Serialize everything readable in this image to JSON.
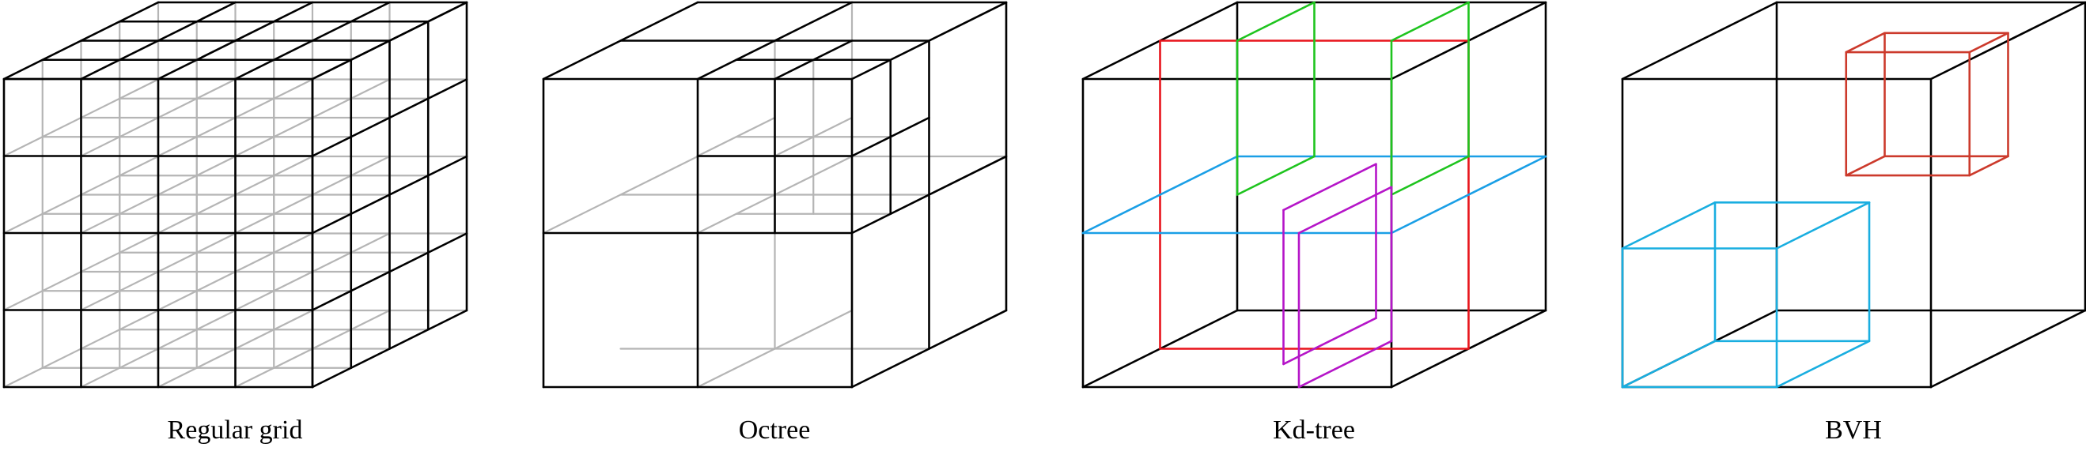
{
  "figure": {
    "panels": [
      {
        "id": "regular-grid",
        "caption": "Regular grid"
      },
      {
        "id": "octree",
        "caption": "Octree"
      },
      {
        "id": "kd-tree",
        "caption": "Kd-tree",
        "colors": {
          "root-split": "#e8141b",
          "left-children": "#1ec41e",
          "right-split": "#b515c8",
          "lower-split": "#1a9fe6"
        }
      },
      {
        "id": "bvh",
        "caption": "BVH",
        "colors": {
          "upper-box": "#cc3a2c",
          "lower-box": "#19aee0"
        }
      }
    ]
  }
}
